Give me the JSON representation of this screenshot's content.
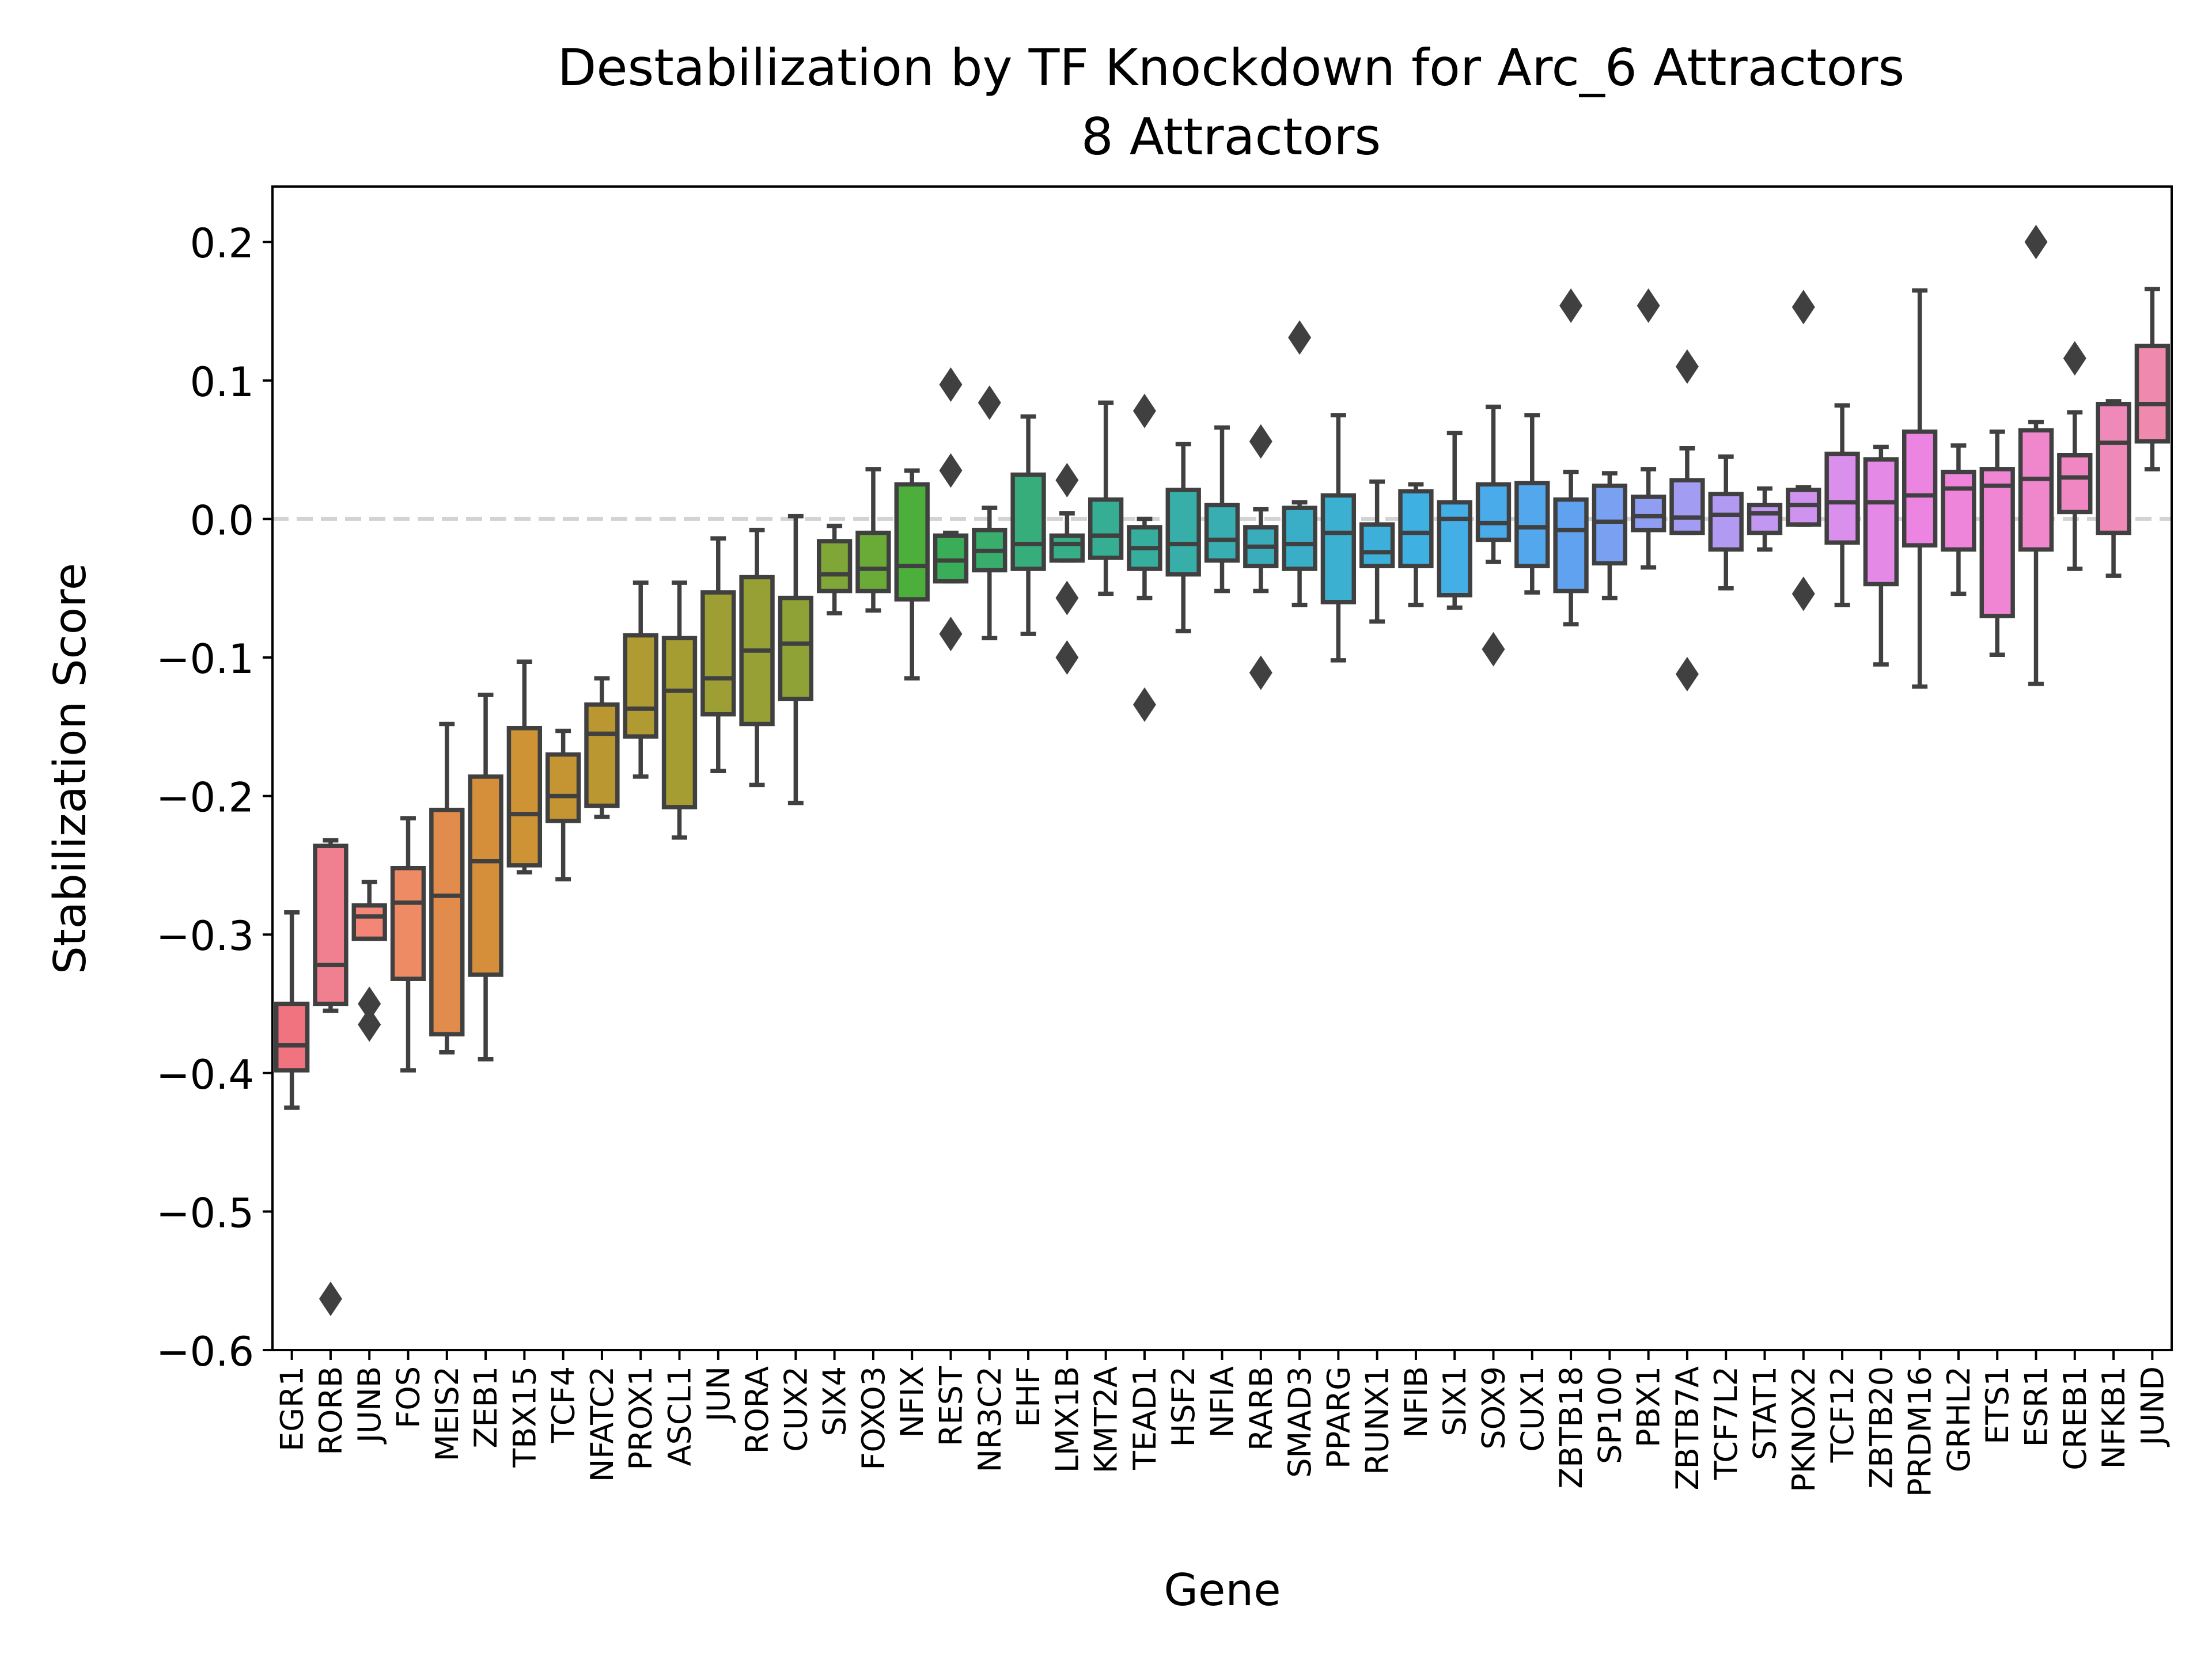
{
  "chart_data": {
    "type": "box",
    "title": "Destabilization by TF Knockdown for Arc_6 Attractors",
    "subtitle": "8 Attractors",
    "xlabel": "Gene",
    "ylabel": "Stabilization Score",
    "ylim": [
      -0.6,
      0.24
    ],
    "yticks": [
      -0.6,
      -0.5,
      -0.4,
      -0.3,
      -0.2,
      -0.1,
      0.0,
      0.1,
      0.2
    ],
    "ytick_labels": [
      "−0.6",
      "−0.5",
      "−0.4",
      "−0.3",
      "−0.2",
      "−0.1",
      "0.0",
      "0.1",
      "0.2"
    ],
    "reference_line": 0.0,
    "boxes": [
      {
        "gene": "EGR1",
        "color": "#f0737f",
        "whisker_low": -0.425,
        "q1": -0.398,
        "median": -0.38,
        "q3": -0.35,
        "whisker_high": -0.284,
        "outliers": []
      },
      {
        "gene": "RORB",
        "color": "#f07f90",
        "whisker_low": -0.355,
        "q1": -0.35,
        "median": -0.322,
        "q3": -0.236,
        "whisker_high": -0.232,
        "outliers": [
          -0.563
        ]
      },
      {
        "gene": "JUNB",
        "color": "#f48678",
        "whisker_low": -0.303,
        "q1": -0.303,
        "median": -0.287,
        "q3": -0.279,
        "whisker_high": -0.262,
        "outliers": [
          -0.35,
          -0.365
        ]
      },
      {
        "gene": "FOS",
        "color": "#ee8a64",
        "whisker_low": -0.398,
        "q1": -0.332,
        "median": -0.277,
        "q3": -0.252,
        "whisker_high": -0.216,
        "outliers": []
      },
      {
        "gene": "MEIS2",
        "color": "#e18b4c",
        "whisker_low": -0.385,
        "q1": -0.372,
        "median": -0.272,
        "q3": -0.21,
        "whisker_high": -0.148,
        "outliers": []
      },
      {
        "gene": "ZEB1",
        "color": "#d58f3b",
        "whisker_low": -0.39,
        "q1": -0.329,
        "median": -0.247,
        "q3": -0.186,
        "whisker_high": -0.127,
        "outliers": []
      },
      {
        "gene": "TBX15",
        "color": "#cd9334",
        "whisker_low": -0.255,
        "q1": -0.25,
        "median": -0.213,
        "q3": -0.151,
        "whisker_high": -0.103,
        "outliers": []
      },
      {
        "gene": "TCF4",
        "color": "#c49532",
        "whisker_low": -0.26,
        "q1": -0.218,
        "median": -0.2,
        "q3": -0.17,
        "whisker_high": -0.153,
        "outliers": []
      },
      {
        "gene": "NFATC2",
        "color": "#bb9732",
        "whisker_low": -0.215,
        "q1": -0.207,
        "median": -0.155,
        "q3": -0.134,
        "whisker_high": -0.115,
        "outliers": []
      },
      {
        "gene": "PROX1",
        "color": "#b09a32",
        "whisker_low": -0.186,
        "q1": -0.157,
        "median": -0.137,
        "q3": -0.084,
        "whisker_high": -0.046,
        "outliers": []
      },
      {
        "gene": "ASCL1",
        "color": "#a59c32",
        "whisker_low": -0.23,
        "q1": -0.208,
        "median": -0.124,
        "q3": -0.086,
        "whisker_high": -0.046,
        "outliers": []
      },
      {
        "gene": "JUN",
        "color": "#9d9e34",
        "whisker_low": -0.182,
        "q1": -0.141,
        "median": -0.115,
        "q3": -0.053,
        "whisker_high": -0.014,
        "outliers": []
      },
      {
        "gene": "RORA",
        "color": "#96a035",
        "whisker_low": -0.192,
        "q1": -0.148,
        "median": -0.095,
        "q3": -0.042,
        "whisker_high": -0.008,
        "outliers": []
      },
      {
        "gene": "CUX2",
        "color": "#8ea236",
        "whisker_low": -0.205,
        "q1": -0.13,
        "median": -0.09,
        "q3": -0.057,
        "whisker_high": 0.002,
        "outliers": []
      },
      {
        "gene": "SIX4",
        "color": "#7fa637",
        "whisker_low": -0.068,
        "q1": -0.052,
        "median": -0.04,
        "q3": -0.016,
        "whisker_high": -0.005,
        "outliers": []
      },
      {
        "gene": "FOXO3",
        "color": "#6aab38",
        "whisker_low": -0.066,
        "q1": -0.052,
        "median": -0.036,
        "q3": -0.01,
        "whisker_high": 0.036,
        "outliers": []
      },
      {
        "gene": "NFIX",
        "color": "#4caf3b",
        "whisker_low": -0.115,
        "q1": -0.058,
        "median": -0.034,
        "q3": 0.025,
        "whisker_high": 0.035,
        "outliers": []
      },
      {
        "gene": "REST",
        "color": "#3aad58",
        "whisker_low": -0.045,
        "q1": -0.045,
        "median": -0.03,
        "q3": -0.012,
        "whisker_high": -0.01,
        "outliers": [
          0.097,
          0.035,
          -0.083
        ]
      },
      {
        "gene": "NR3C2",
        "color": "#38ad6c",
        "whisker_low": -0.086,
        "q1": -0.037,
        "median": -0.023,
        "q3": -0.008,
        "whisker_high": 0.008,
        "outliers": [
          0.084
        ]
      },
      {
        "gene": "EHF",
        "color": "#37ad7b",
        "whisker_low": -0.083,
        "q1": -0.036,
        "median": -0.018,
        "q3": 0.032,
        "whisker_high": 0.074,
        "outliers": []
      },
      {
        "gene": "LMX1B",
        "color": "#36ae88",
        "whisker_low": -0.03,
        "q1": -0.03,
        "median": -0.018,
        "q3": -0.012,
        "whisker_high": 0.004,
        "outliers": [
          0.028,
          -0.057,
          -0.1
        ]
      },
      {
        "gene": "KMT2A",
        "color": "#36ae93",
        "whisker_low": -0.054,
        "q1": -0.028,
        "median": -0.012,
        "q3": 0.014,
        "whisker_high": 0.084,
        "outliers": []
      },
      {
        "gene": "TEAD1",
        "color": "#36ae9e",
        "whisker_low": -0.057,
        "q1": -0.036,
        "median": -0.021,
        "q3": -0.006,
        "whisker_high": 0.0,
        "outliers": [
          0.078,
          -0.134
        ]
      },
      {
        "gene": "HSF2",
        "color": "#37aea8",
        "whisker_low": -0.081,
        "q1": -0.04,
        "median": -0.018,
        "q3": 0.021,
        "whisker_high": 0.054,
        "outliers": []
      },
      {
        "gene": "NFIA",
        "color": "#38adb2",
        "whisker_low": -0.052,
        "q1": -0.03,
        "median": -0.015,
        "q3": 0.01,
        "whisker_high": 0.066,
        "outliers": []
      },
      {
        "gene": "RARB",
        "color": "#39adbc",
        "whisker_low": -0.052,
        "q1": -0.034,
        "median": -0.02,
        "q3": -0.006,
        "whisker_high": 0.007,
        "outliers": [
          0.056,
          -0.111
        ]
      },
      {
        "gene": "SMAD3",
        "color": "#3aaec6",
        "whisker_low": -0.062,
        "q1": -0.036,
        "median": -0.018,
        "q3": 0.008,
        "whisker_high": 0.012,
        "outliers": [
          0.131
        ]
      },
      {
        "gene": "PPARG",
        "color": "#3bb0d0",
        "whisker_low": -0.102,
        "q1": -0.06,
        "median": -0.01,
        "q3": 0.017,
        "whisker_high": 0.075,
        "outliers": []
      },
      {
        "gene": "RUNX1",
        "color": "#3cb0da",
        "whisker_low": -0.074,
        "q1": -0.034,
        "median": -0.024,
        "q3": -0.004,
        "whisker_high": 0.027,
        "outliers": []
      },
      {
        "gene": "NFIB",
        "color": "#3fb0e2",
        "whisker_low": -0.062,
        "q1": -0.034,
        "median": -0.01,
        "q3": 0.02,
        "whisker_high": 0.025,
        "outliers": []
      },
      {
        "gene": "SIX1",
        "color": "#44aee7",
        "whisker_low": -0.064,
        "q1": -0.055,
        "median": 0.0,
        "q3": 0.012,
        "whisker_high": 0.062,
        "outliers": []
      },
      {
        "gene": "SOX9",
        "color": "#4aabea",
        "whisker_low": -0.031,
        "q1": -0.015,
        "median": -0.003,
        "q3": 0.025,
        "whisker_high": 0.081,
        "outliers": [
          -0.094
        ]
      },
      {
        "gene": "CUX1",
        "color": "#53a7ed",
        "whisker_low": -0.053,
        "q1": -0.034,
        "median": -0.006,
        "q3": 0.026,
        "whisker_high": 0.075,
        "outliers": []
      },
      {
        "gene": "ZBTB18",
        "color": "#60a2f0",
        "whisker_low": -0.076,
        "q1": -0.052,
        "median": -0.008,
        "q3": 0.014,
        "whisker_high": 0.034,
        "outliers": [
          0.154
        ]
      },
      {
        "gene": "SP100",
        "color": "#7aa0f2",
        "whisker_low": -0.057,
        "q1": -0.032,
        "median": -0.002,
        "q3": 0.024,
        "whisker_high": 0.033,
        "outliers": []
      },
      {
        "gene": "PBX1",
        "color": "#8f9ef3",
        "whisker_low": -0.035,
        "q1": -0.008,
        "median": 0.002,
        "q3": 0.016,
        "whisker_high": 0.036,
        "outliers": [
          0.154
        ]
      },
      {
        "gene": "ZBTB7A",
        "color": "#a29cf3",
        "whisker_low": -0.01,
        "q1": -0.01,
        "median": 0.001,
        "q3": 0.028,
        "whisker_high": 0.051,
        "outliers": [
          0.11,
          -0.112
        ]
      },
      {
        "gene": "TCF7L2",
        "color": "#b29af2",
        "whisker_low": -0.05,
        "q1": -0.022,
        "median": 0.003,
        "q3": 0.018,
        "whisker_high": 0.045,
        "outliers": []
      },
      {
        "gene": "STAT1",
        "color": "#c197f1",
        "whisker_low": -0.022,
        "q1": -0.01,
        "median": 0.004,
        "q3": 0.01,
        "whisker_high": 0.022,
        "outliers": []
      },
      {
        "gene": "PKNOX2",
        "color": "#cf93ef",
        "whisker_low": -0.004,
        "q1": -0.004,
        "median": 0.01,
        "q3": 0.021,
        "whisker_high": 0.023,
        "outliers": [
          0.153,
          -0.054
        ]
      },
      {
        "gene": "TCF12",
        "color": "#db8fec",
        "whisker_low": -0.062,
        "q1": -0.017,
        "median": 0.012,
        "q3": 0.047,
        "whisker_high": 0.082,
        "outliers": []
      },
      {
        "gene": "ZBTB20",
        "color": "#e589e7",
        "whisker_low": -0.105,
        "q1": -0.047,
        "median": 0.012,
        "q3": 0.043,
        "whisker_high": 0.052,
        "outliers": []
      },
      {
        "gene": "PRDM16",
        "color": "#ec85e2",
        "whisker_low": -0.121,
        "q1": -0.019,
        "median": 0.017,
        "q3": 0.063,
        "whisker_high": 0.165,
        "outliers": []
      },
      {
        "gene": "GRHL2",
        "color": "#ef84db",
        "whisker_low": -0.054,
        "q1": -0.022,
        "median": 0.022,
        "q3": 0.034,
        "whisker_high": 0.053,
        "outliers": []
      },
      {
        "gene": "ETS1",
        "color": "#f085d3",
        "whisker_low": -0.098,
        "q1": -0.07,
        "median": 0.024,
        "q3": 0.036,
        "whisker_high": 0.063,
        "outliers": []
      },
      {
        "gene": "ESR1",
        "color": "#f086cb",
        "whisker_low": -0.119,
        "q1": -0.022,
        "median": 0.029,
        "q3": 0.064,
        "whisker_high": 0.07,
        "outliers": [
          0.2
        ]
      },
      {
        "gene": "CREB1",
        "color": "#f087c2",
        "whisker_low": -0.036,
        "q1": 0.005,
        "median": 0.03,
        "q3": 0.046,
        "whisker_high": 0.077,
        "outliers": [
          0.116
        ]
      },
      {
        "gene": "NFKB1",
        "color": "#ef89b9",
        "whisker_low": -0.041,
        "q1": -0.01,
        "median": 0.055,
        "q3": 0.083,
        "whisker_high": 0.085,
        "outliers": []
      },
      {
        "gene": "JUND",
        "color": "#ef8aae",
        "whisker_low": 0.036,
        "q1": 0.056,
        "median": 0.083,
        "q3": 0.125,
        "whisker_high": 0.166,
        "outliers": []
      }
    ]
  }
}
